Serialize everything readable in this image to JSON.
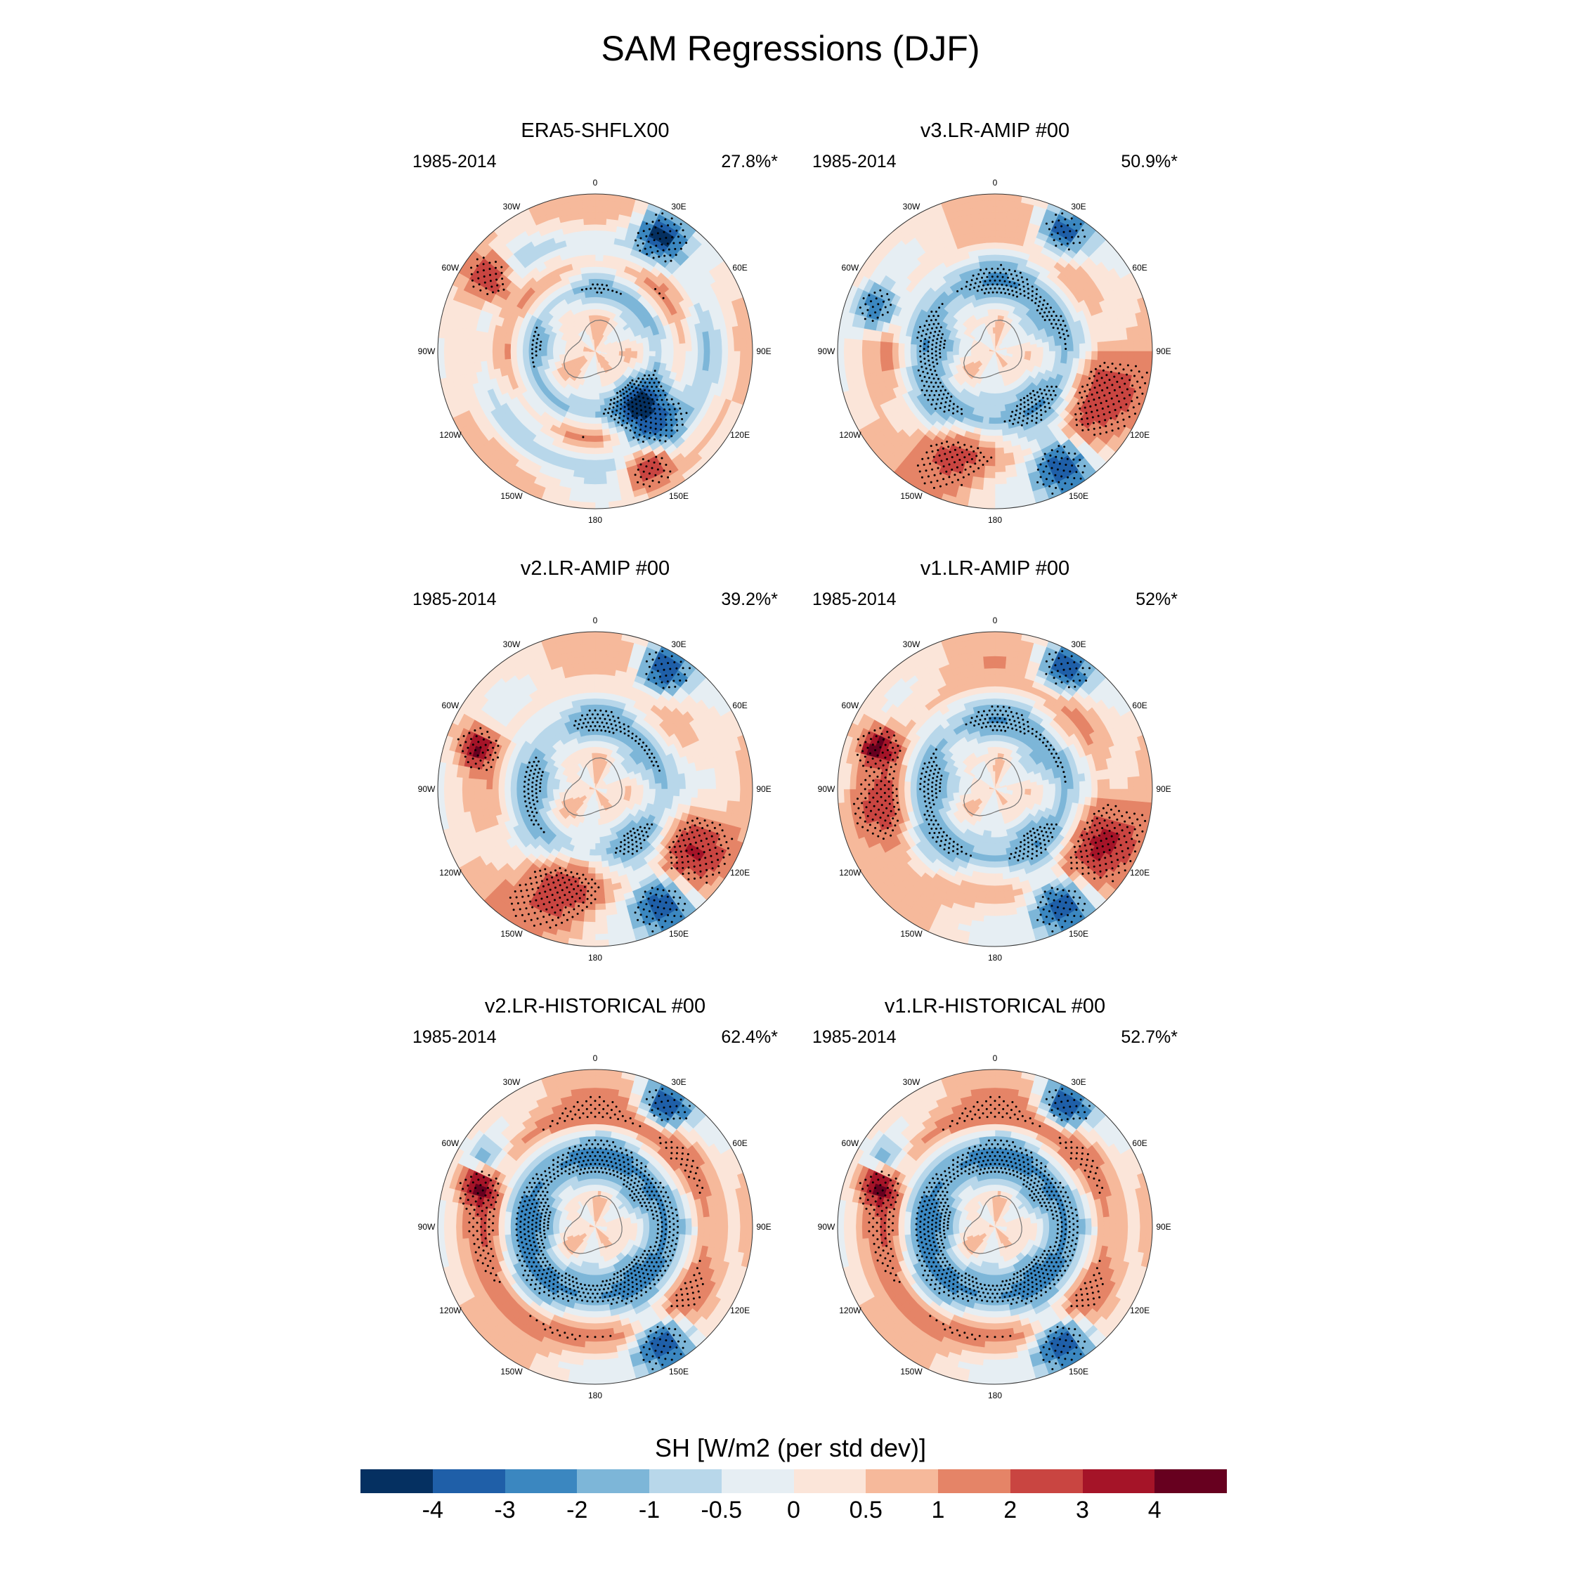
{
  "title": "SAM Regressions (DJF)",
  "panels": [
    {
      "title": "ERA5-SHFLX00",
      "period": "1985-2014",
      "variance": "27.8%*",
      "pattern": "era5"
    },
    {
      "title": "v3.LR-AMIP  #00",
      "period": "1985-2014",
      "variance": "50.9%*",
      "pattern": "amip3"
    },
    {
      "title": "v2.LR-AMIP  #00",
      "period": "1985-2014",
      "variance": "39.2%*",
      "pattern": "amip2"
    },
    {
      "title": "v1.LR-AMIP  #00",
      "period": "1985-2014",
      "variance": "52%*",
      "pattern": "amip1"
    },
    {
      "title": "v2.LR-HISTORICAL  #00",
      "period": "1985-2014",
      "variance": "62.4%*",
      "pattern": "hist"
    },
    {
      "title": "v1.LR-HISTORICAL  #00",
      "period": "1985-2014",
      "variance": "52.7%*",
      "pattern": "hist"
    }
  ],
  "longitude_labels": [
    "0",
    "30E",
    "60E",
    "90E",
    "120E",
    "150E",
    "180",
    "150W",
    "120W",
    "90W",
    "60W",
    "30W"
  ],
  "colorbar": {
    "title": "SH [W/m2 (per std dev)]",
    "levels": [
      "-4",
      "-3",
      "-2",
      "-1",
      "-0.5",
      "0",
      "0.5",
      "1",
      "2",
      "3",
      "4"
    ],
    "colors": [
      "#053061",
      "#1f5fa8",
      "#3b87c0",
      "#7db6d8",
      "#b8d7ea",
      "#e6eef3",
      "#fbe5d9",
      "#f6b99b",
      "#e58467",
      "#c94541",
      "#a51428",
      "#67001f"
    ]
  }
}
